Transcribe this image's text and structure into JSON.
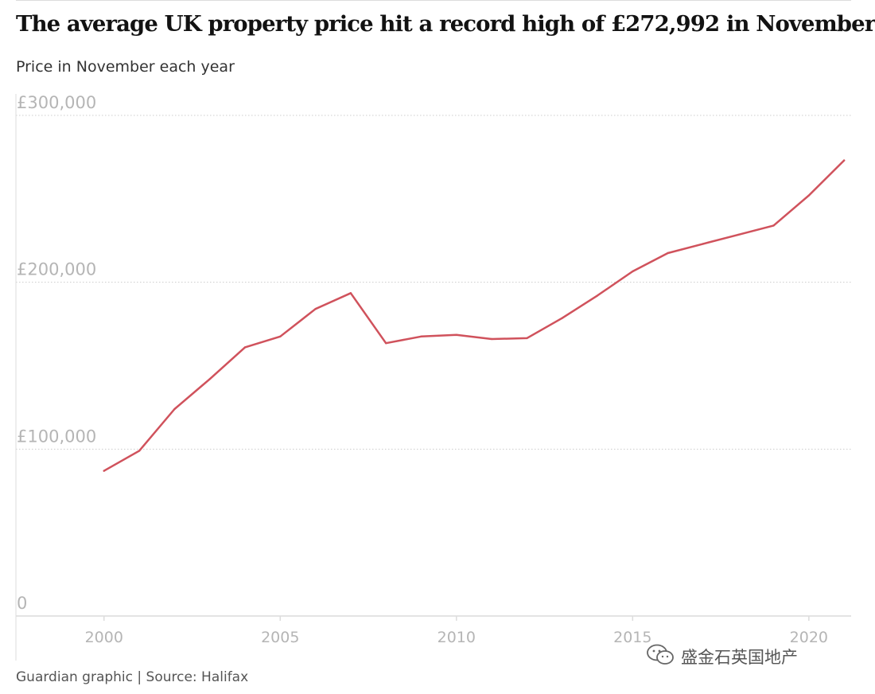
{
  "title": "The average UK property price hit a record high of £272,992 in November",
  "subtitle": "Price in November each year",
  "footer": "Guardian graphic | Source: Halifax",
  "watermark": {
    "text": "盛金石英国地产",
    "icon": "wechat-icon"
  },
  "colors": {
    "line": "#d0525c",
    "grid": "#cccccc",
    "tick_label": "#b5b5b5",
    "axis": "#dcdcdc"
  },
  "chart_data": {
    "type": "line",
    "title": "The average UK property price hit a record high of £272,992 in November",
    "subtitle": "Price in November each year",
    "xlabel": "",
    "ylabel": "",
    "xlim": [
      1997.5,
      2021.2
    ],
    "ylim": [
      0,
      300000
    ],
    "grid": true,
    "x_ticks": [
      2000,
      2005,
      2010,
      2015,
      2020
    ],
    "x_tick_labels": [
      "2000",
      "2005",
      "2010",
      "2015",
      "2020"
    ],
    "y_ticks": [
      0,
      100000,
      200000,
      300000
    ],
    "y_tick_labels": [
      "0",
      "£100,000",
      "£200,000",
      "£300,000"
    ],
    "series": [
      {
        "x": [
          2000,
          2001,
          2002,
          2003,
          2004,
          2005,
          2006,
          2007,
          2008,
          2009,
          2010,
          2011,
          2012,
          2013,
          2014,
          2015,
          2016,
          2017,
          2018,
          2019,
          2020,
          2021
        ],
        "values": [
          87000,
          99000,
          124000,
          142000,
          161000,
          167500,
          184000,
          193500,
          163500,
          167500,
          168500,
          166000,
          166500,
          178500,
          192000,
          206500,
          217500,
          223000,
          228500,
          234000,
          252000,
          272992
        ]
      }
    ]
  }
}
